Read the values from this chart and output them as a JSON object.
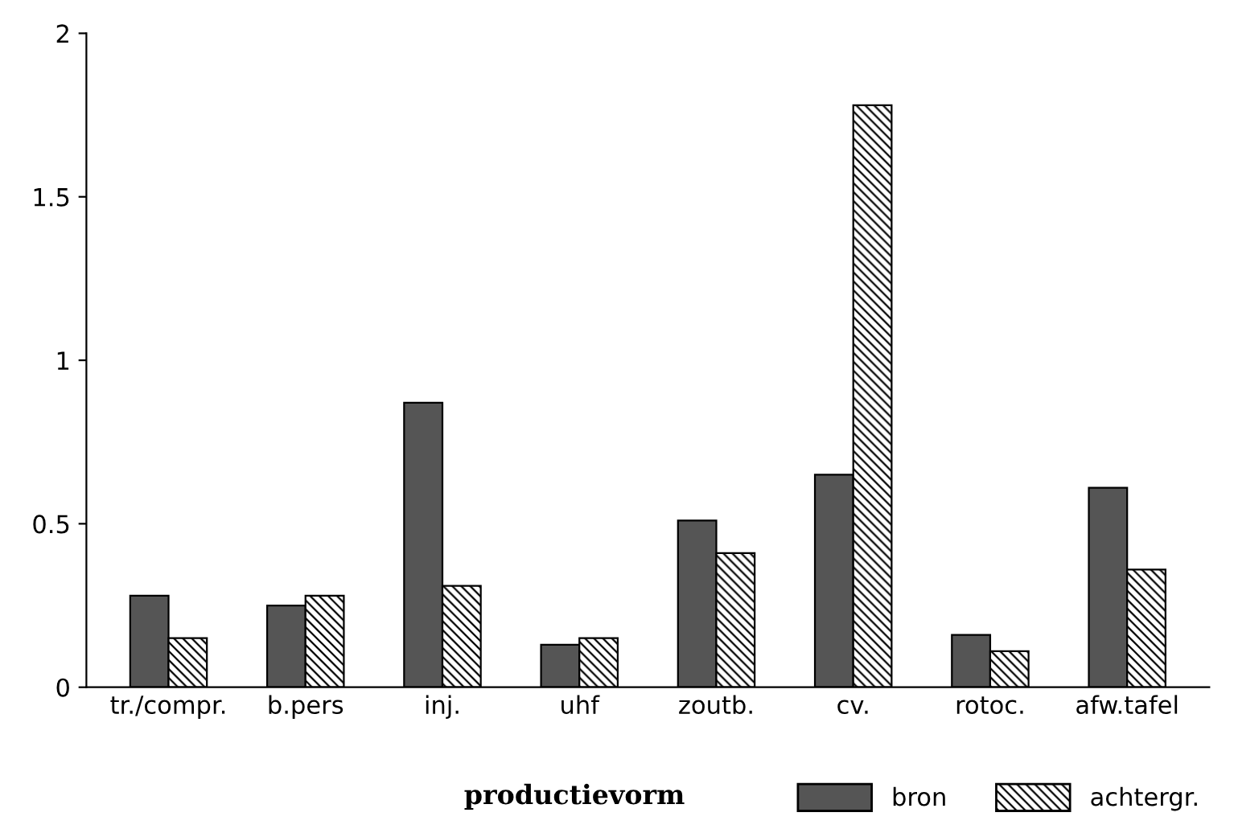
{
  "chart_data": {
    "type": "bar",
    "legend_title": "productievorm",
    "categories": [
      "tr./compr.",
      "b.pers",
      "inj.",
      "uhf",
      "zoutb.",
      "cv.",
      "rotoc.",
      "afw.tafel"
    ],
    "series": [
      {
        "name": "bron",
        "color": "#555555",
        "values": [
          0.28,
          0.25,
          0.87,
          0.13,
          0.51,
          0.65,
          0.16,
          0.61
        ]
      },
      {
        "name": "achtergr.",
        "color": "#000000",
        "values": [
          0.15,
          0.28,
          0.31,
          0.15,
          0.41,
          1.78,
          0.11,
          0.36
        ]
      }
    ],
    "ylim": [
      0,
      2
    ],
    "yticks": [
      0,
      0.5,
      1,
      1.5,
      2
    ],
    "grid": false,
    "legend": "bottom"
  }
}
